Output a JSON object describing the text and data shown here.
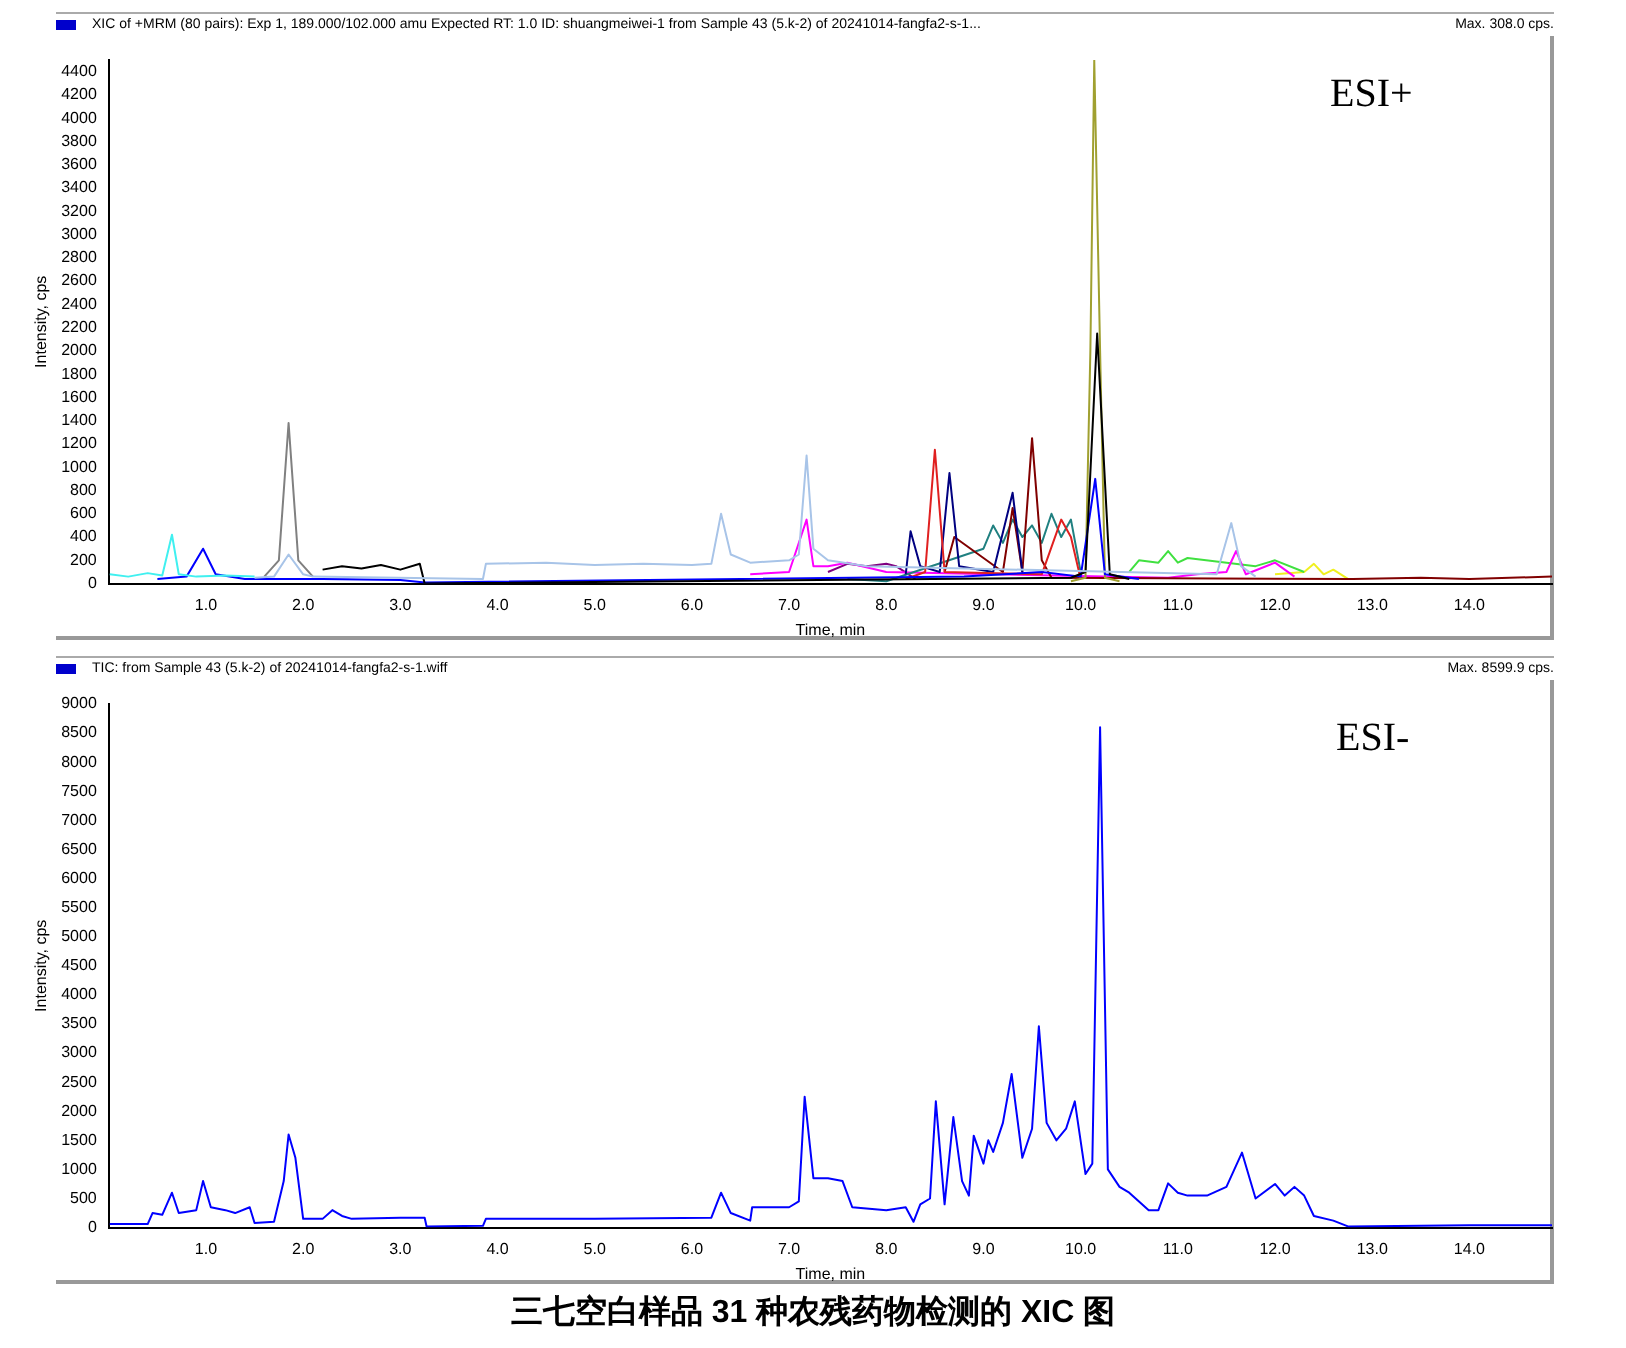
{
  "chart_data": [
    {
      "type": "line",
      "title": "XIC of +MRM (80 pairs): Exp 1, 189.000/102.000 amu Expected RT: 1.0 ID: shuangmeiwei-1 from Sample 43 (5.k-2) of 20241014-fangfa2-s-1...",
      "xlabel": "Time, min",
      "ylabel": "Intensity, cps",
      "annotations": [
        "Max. 308.0 cps.",
        "ESI+"
      ],
      "grid": false,
      "legend": false,
      "marker": "none",
      "xlim": [
        0,
        14.85
      ],
      "ylim": [
        0,
        4500
      ],
      "xticks": [
        {
          "value": 1,
          "label": "1.0"
        },
        {
          "value": 2,
          "label": "2.0"
        },
        {
          "value": 3,
          "label": "3.0"
        },
        {
          "value": 4,
          "label": "4.0"
        },
        {
          "value": 5,
          "label": "5.0"
        },
        {
          "value": 6,
          "label": "6.0"
        },
        {
          "value": 7,
          "label": "7.0"
        },
        {
          "value": 8,
          "label": "8.0"
        },
        {
          "value": 9,
          "label": "9.0"
        },
        {
          "value": 10,
          "label": "10.0"
        },
        {
          "value": 11,
          "label": "11.0"
        },
        {
          "value": 12,
          "label": "12.0"
        },
        {
          "value": 13,
          "label": "13.0"
        },
        {
          "value": 14,
          "label": "14.0"
        }
      ],
      "yticks": [
        0,
        200,
        400,
        600,
        800,
        1000,
        1200,
        1400,
        1600,
        1800,
        2000,
        2200,
        2400,
        2600,
        2800,
        3000,
        3200,
        3400,
        3600,
        3800,
        4000,
        4200,
        4400
      ],
      "series": [
        {
          "color": "#40f0f0",
          "x": [
            0.01,
            0.2,
            0.4,
            0.55,
            0.65,
            0.72,
            0.9,
            1.2,
            1.5
          ],
          "values": [
            80,
            60,
            90,
            70,
            420,
            80,
            60,
            70,
            60
          ]
        },
        {
          "color": "#a8c4e8",
          "x": [
            1.5,
            1.7,
            1.85,
            2.0,
            2.1,
            3.85,
            3.88,
            4.5,
            5.0,
            5.5,
            6.0,
            6.2,
            6.3,
            6.4,
            6.6,
            7.0,
            7.1,
            7.18,
            7.25,
            7.4,
            7.8,
            11.4,
            11.55,
            11.65,
            11.8
          ],
          "values": [
            50,
            60,
            250,
            80,
            60,
            40,
            170,
            180,
            160,
            170,
            160,
            170,
            600,
            250,
            180,
            200,
            250,
            1100,
            300,
            200,
            150,
            80,
            520,
            150,
            60
          ]
        },
        {
          "color": "#808080",
          "x": [
            1.6,
            1.75,
            1.85,
            1.95,
            2.1
          ],
          "values": [
            60,
            200,
            1380,
            200,
            60
          ]
        },
        {
          "color": "#000000",
          "x": [
            2.2,
            2.4,
            2.6,
            2.8,
            3.0,
            3.2,
            3.25,
            9.9,
            10.05,
            10.17,
            10.3,
            10.5
          ],
          "values": [
            120,
            150,
            130,
            160,
            120,
            170,
            0,
            50,
            100,
            2150,
            80,
            40
          ]
        },
        {
          "color": "#0000ff",
          "x": [
            0.5,
            0.8,
            0.97,
            1.1,
            1.4,
            2.2,
            3.0,
            3.25,
            8.8,
            9.6,
            10.0,
            10.15,
            10.25,
            10.6
          ],
          "values": [
            40,
            60,
            300,
            80,
            40,
            40,
            30,
            10,
            60,
            100,
            60,
            900,
            80,
            40
          ]
        },
        {
          "color": "#a0a030",
          "x": [
            9.9,
            10.05,
            10.1,
            10.14,
            10.2,
            10.25,
            10.4
          ],
          "values": [
            20,
            50,
            2000,
            4500,
            2000,
            50,
            20
          ]
        },
        {
          "color": "#e02020",
          "x": [
            8.2,
            8.4,
            8.5,
            8.6,
            9.6,
            9.8,
            9.9,
            10.0
          ],
          "values": [
            40,
            100,
            1150,
            100,
            80,
            550,
            400,
            40
          ]
        },
        {
          "color": "#000080",
          "x": [
            8.2,
            8.25,
            8.35,
            8.55,
            8.65,
            8.75,
            9.1,
            9.3,
            9.4
          ],
          "values": [
            80,
            450,
            150,
            100,
            950,
            150,
            100,
            780,
            100
          ]
        },
        {
          "color": "#800000",
          "x": [
            8.6,
            8.7,
            9.2,
            9.3,
            9.4,
            9.5,
            9.6,
            9.7,
            12.8,
            13.5,
            14.0,
            14.85
          ],
          "values": [
            100,
            400,
            100,
            650,
            100,
            1250,
            200,
            50,
            40,
            50,
            40,
            60
          ]
        },
        {
          "color": "#208080",
          "x": [
            7.6,
            8.0,
            9.0,
            9.1,
            9.2,
            9.3,
            9.4,
            9.5,
            9.6,
            9.7,
            9.8,
            9.9,
            10.0
          ],
          "values": [
            40,
            20,
            300,
            500,
            350,
            550,
            400,
            500,
            350,
            600,
            400,
            550,
            100
          ]
        },
        {
          "color": "#ff00ff",
          "x": [
            6.6,
            7.0,
            7.18,
            7.25,
            7.4,
            7.6,
            8.0,
            10.9,
            11.2,
            11.5,
            11.6,
            11.7,
            12.0,
            12.2
          ],
          "values": [
            80,
            100,
            550,
            150,
            150,
            180,
            100,
            50,
            80,
            100,
            280,
            80,
            180,
            60
          ]
        },
        {
          "color": "#40e040",
          "x": [
            10.5,
            10.6,
            10.8,
            10.9,
            11.0,
            11.1,
            11.8,
            12.0,
            12.3
          ],
          "values": [
            100,
            200,
            180,
            280,
            180,
            220,
            150,
            200,
            100
          ]
        },
        {
          "color": "#800080",
          "x": [
            7.4,
            7.6,
            7.8,
            8.0,
            8.1,
            8.3
          ],
          "values": [
            100,
            170,
            150,
            170,
            150,
            40
          ]
        },
        {
          "color": "#f0f020",
          "x": [
            12.0,
            12.3,
            12.4,
            12.5,
            12.6,
            12.75
          ],
          "values": [
            80,
            100,
            170,
            80,
            120,
            40
          ]
        }
      ]
    },
    {
      "type": "line",
      "title": "TIC: from Sample 43 (5.k-2) of 20241014-fangfa2-s-1.wiff",
      "xlabel": "Time, min",
      "ylabel": "Intensity, cps",
      "annotations": [
        "Max. 8599.9 cps.",
        "ESI-",
        "三七空白样品 31 种农残药物检测的 XIC 图"
      ],
      "grid": false,
      "legend": false,
      "marker": "none",
      "xlim": [
        0,
        14.85
      ],
      "ylim": [
        0,
        9000
      ],
      "xticks": [
        {
          "value": 1,
          "label": "1.0"
        },
        {
          "value": 2,
          "label": "2.0"
        },
        {
          "value": 3,
          "label": "3.0"
        },
        {
          "value": 4,
          "label": "4.0"
        },
        {
          "value": 5,
          "label": "5.0"
        },
        {
          "value": 6,
          "label": "6.0"
        },
        {
          "value": 7,
          "label": "7.0"
        },
        {
          "value": 8,
          "label": "8.0"
        },
        {
          "value": 9,
          "label": "9.0"
        },
        {
          "value": 10,
          "label": "10.0"
        },
        {
          "value": 11,
          "label": "11.0"
        },
        {
          "value": 12,
          "label": "12.0"
        },
        {
          "value": 13,
          "label": "13.0"
        },
        {
          "value": 14,
          "label": "14.0"
        }
      ],
      "yticks": [
        0,
        500,
        1000,
        1500,
        2000,
        2500,
        3000,
        3500,
        4000,
        4500,
        5000,
        5500,
        6000,
        6500,
        7000,
        7500,
        8000,
        8500,
        9000
      ],
      "series": [
        {
          "color": "#0000ff",
          "x": [
            0.01,
            0.4,
            0.45,
            0.55,
            0.65,
            0.72,
            0.9,
            0.97,
            1.05,
            1.2,
            1.3,
            1.45,
            1.5,
            1.7,
            1.8,
            1.85,
            1.92,
            2.0,
            2.2,
            2.3,
            2.4,
            2.5,
            3.0,
            3.25,
            3.27,
            3.85,
            3.88,
            5.0,
            6.2,
            6.3,
            6.4,
            6.6,
            6.62,
            7.0,
            7.1,
            7.16,
            7.25,
            7.4,
            7.55,
            7.65,
            8.0,
            8.2,
            8.28,
            8.35,
            8.45,
            8.51,
            8.6,
            8.69,
            8.78,
            8.85,
            8.9,
            9.0,
            9.05,
            9.1,
            9.2,
            9.29,
            9.4,
            9.5,
            9.57,
            9.65,
            9.75,
            9.85,
            9.94,
            10.05,
            10.12,
            10.2,
            10.28,
            10.4,
            10.5,
            10.7,
            10.8,
            10.9,
            11.0,
            11.1,
            11.3,
            11.5,
            11.66,
            11.8,
            12.0,
            12.1,
            12.2,
            12.3,
            12.4,
            12.6,
            12.75,
            14.0,
            14.85
          ],
          "values": [
            60,
            60,
            250,
            220,
            600,
            250,
            300,
            800,
            350,
            300,
            250,
            350,
            80,
            100,
            800,
            1600,
            1200,
            150,
            150,
            300,
            200,
            150,
            170,
            170,
            20,
            30,
            150,
            150,
            170,
            600,
            250,
            120,
            350,
            350,
            450,
            2250,
            850,
            850,
            800,
            350,
            300,
            350,
            100,
            400,
            500,
            2170,
            400,
            1900,
            800,
            550,
            1580,
            1100,
            1500,
            1300,
            1800,
            2640,
            1200,
            1700,
            3460,
            1800,
            1500,
            1700,
            2170,
            920,
            1100,
            8600,
            1000,
            700,
            600,
            300,
            300,
            760,
            600,
            550,
            550,
            700,
            1290,
            500,
            750,
            550,
            700,
            550,
            200,
            120,
            20,
            40,
            40
          ]
        }
      ]
    }
  ]
}
